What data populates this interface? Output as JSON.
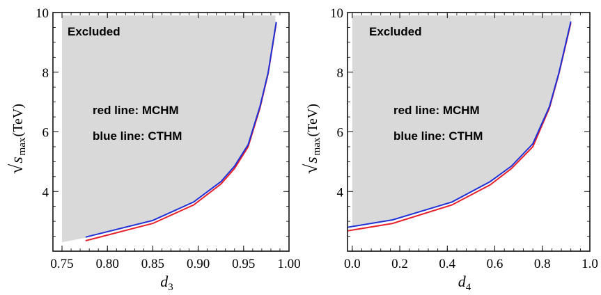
{
  "chart_data": [
    {
      "type": "area",
      "xlabel": "d",
      "xlabel_sub": "3",
      "ylabel_root": "√",
      "ylabel_var": "s",
      "ylabel_sub": "max",
      "ylabel_unit": "(TeV)",
      "xlim": [
        0.74,
        1.0
      ],
      "ylim": [
        2.0,
        10.0
      ],
      "xticks": [
        "0.75",
        "0.80",
        "0.85",
        "0.90",
        "0.95",
        "1.00"
      ],
      "xtick_values": [
        0.75,
        0.8,
        0.85,
        0.9,
        0.95,
        1.0
      ],
      "yticks": [
        "4",
        "6",
        "8",
        "10"
      ],
      "ytick_values": [
        4,
        6,
        8,
        10
      ],
      "annotations": {
        "excluded": "Excluded",
        "red": "red line: MCHM",
        "blue": "blue line: CTHM"
      },
      "excluded_region": {
        "fill": "#d9d9d9",
        "boundary": [
          [
            0.75,
            2.3
          ],
          [
            0.776,
            2.45
          ],
          [
            0.85,
            3.0
          ],
          [
            0.895,
            3.63
          ],
          [
            0.925,
            4.3
          ],
          [
            0.94,
            4.8
          ],
          [
            0.955,
            5.55
          ],
          [
            0.968,
            6.8
          ],
          [
            0.977,
            7.95
          ],
          [
            0.985,
            9.65
          ]
        ],
        "top": 9.9
      },
      "series": [
        {
          "name": "MCHM",
          "color": "#e8202a",
          "x": [
            0.776,
            0.85,
            0.895,
            0.925,
            0.94,
            0.955,
            0.968,
            0.977,
            0.986
          ],
          "y": [
            2.35,
            2.93,
            3.55,
            4.25,
            4.77,
            5.5,
            6.8,
            7.95,
            9.65
          ]
        },
        {
          "name": "CTHM",
          "color": "#2030d8",
          "x": [
            0.776,
            0.85,
            0.895,
            0.925,
            0.94,
            0.955,
            0.968,
            0.977,
            0.986
          ],
          "y": [
            2.47,
            3.03,
            3.65,
            4.33,
            4.85,
            5.57,
            6.85,
            7.98,
            9.68
          ]
        }
      ]
    },
    {
      "type": "area",
      "xlabel": "d",
      "xlabel_sub": "4",
      "ylabel_root": "√",
      "ylabel_var": "s",
      "ylabel_sub": "max",
      "ylabel_unit": "(TeV)",
      "xlim": [
        -0.02,
        1.0
      ],
      "ylim": [
        2.0,
        10.0
      ],
      "xticks": [
        "0.0",
        "0.2",
        "0.4",
        "0.6",
        "0.8",
        "1.0"
      ],
      "xtick_values": [
        0.0,
        0.2,
        0.4,
        0.6,
        0.8,
        1.0
      ],
      "yticks": [
        "4",
        "6",
        "8",
        "10"
      ],
      "ytick_values": [
        4,
        6,
        8,
        10
      ],
      "annotations": {
        "excluded": "Excluded",
        "red": "red line: MCHM",
        "blue": "blue line: CTHM"
      },
      "excluded_region": {
        "fill": "#d9d9d9",
        "boundary": [
          [
            0.0,
            2.8
          ],
          [
            0.17,
            3.05
          ],
          [
            0.42,
            3.65
          ],
          [
            0.58,
            4.3
          ],
          [
            0.67,
            4.85
          ],
          [
            0.76,
            5.6
          ],
          [
            0.83,
            6.85
          ],
          [
            0.87,
            7.95
          ],
          [
            0.92,
            9.7
          ]
        ],
        "top": 9.9
      },
      "series": [
        {
          "name": "MCHM",
          "color": "#e8202a",
          "x": [
            -0.02,
            0.17,
            0.42,
            0.58,
            0.67,
            0.76,
            0.83,
            0.87,
            0.92
          ],
          "y": [
            2.68,
            2.93,
            3.55,
            4.22,
            4.77,
            5.5,
            6.8,
            7.95,
            9.65
          ]
        },
        {
          "name": "CTHM",
          "color": "#2030d8",
          "x": [
            -0.02,
            0.17,
            0.42,
            0.58,
            0.67,
            0.76,
            0.83,
            0.87,
            0.92
          ],
          "y": [
            2.8,
            3.05,
            3.65,
            4.33,
            4.85,
            5.6,
            6.85,
            7.98,
            9.7
          ]
        }
      ]
    }
  ]
}
